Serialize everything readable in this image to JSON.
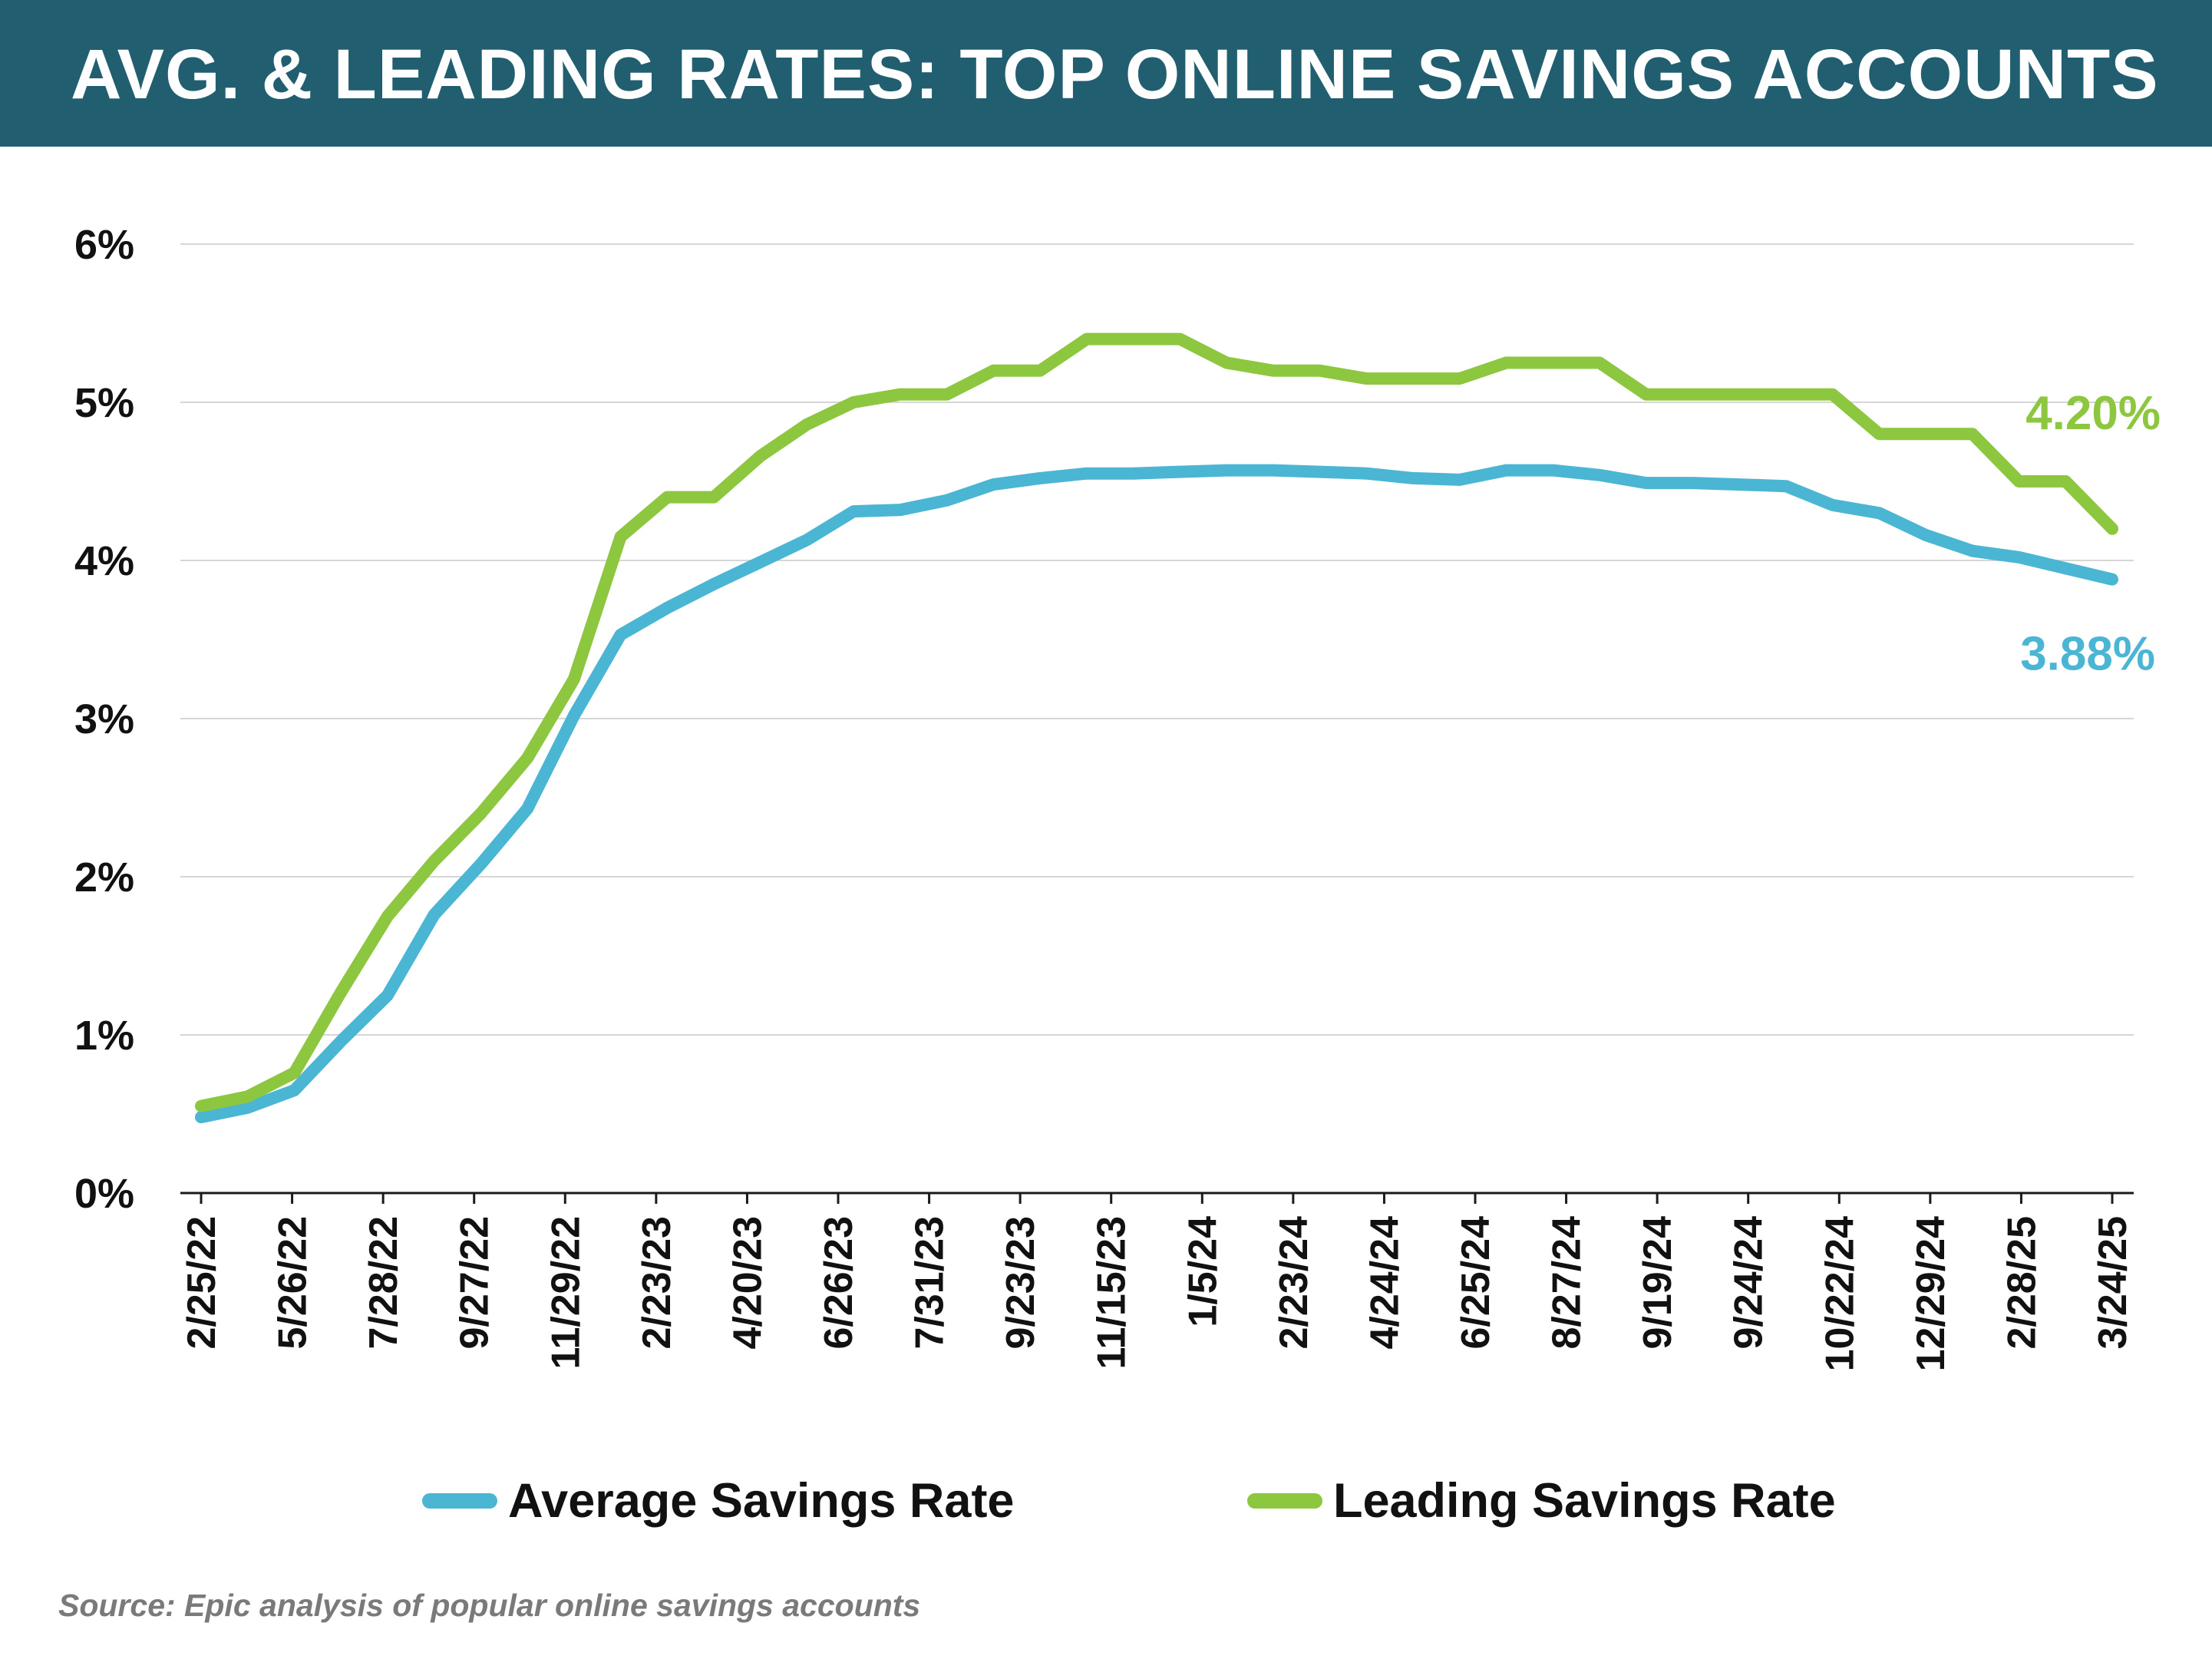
{
  "header": {
    "title": "AVG. & LEADING RATES: TOP ONLINE SAVINGS ACCOUNTS"
  },
  "colors": {
    "header_bg": "#215e70",
    "average": "#4bb5d4",
    "leading": "#8dc63f",
    "grid": "#d6d6d6"
  },
  "chart_data": {
    "type": "line",
    "title": "AVG. & LEADING RATES: TOP ONLINE SAVINGS ACCOUNTS",
    "xlabel": "",
    "ylabel": "",
    "ylim": [
      0,
      6
    ],
    "yticks": [
      "0%",
      "1%",
      "2%",
      "3%",
      "4%",
      "5%",
      "6%"
    ],
    "grid": true,
    "legend": "bottom",
    "x_tick_labels": [
      "2/25/22",
      "5/26/22",
      "7/28/22",
      "9/27/22",
      "11/29/22",
      "2/23/23",
      "4/20/23",
      "6/26/23",
      "7/31/23",
      "9/23/23",
      "11/15/23",
      "1/5/24",
      "2/23/24",
      "4/24/24",
      "6/25/24",
      "8/27/24",
      "9/19/24",
      "9/24/24",
      "10/22/24",
      "12/29/24",
      "2/28/25",
      "3/24/25"
    ],
    "series": [
      {
        "name": "Average Savings Rate",
        "color": "#4bb5d4",
        "end_label": "3.88%",
        "values": [
          0.48,
          0.54,
          0.65,
          0.96,
          1.25,
          1.76,
          2.08,
          2.43,
          3.02,
          3.53,
          3.7,
          3.85,
          3.99,
          4.13,
          4.31,
          4.32,
          4.38,
          4.48,
          4.52,
          4.55,
          4.55,
          4.56,
          4.57,
          4.57,
          4.56,
          4.55,
          4.52,
          4.51,
          4.57,
          4.57,
          4.54,
          4.49,
          4.49,
          4.48,
          4.47,
          4.35,
          4.3,
          4.16,
          4.06,
          4.02,
          3.95,
          3.88
        ]
      },
      {
        "name": "Leading Savings Rate",
        "color": "#8dc63f",
        "end_label": "4.20%",
        "values": [
          0.55,
          0.61,
          0.76,
          1.27,
          1.75,
          2.1,
          2.4,
          2.75,
          3.25,
          4.15,
          4.4,
          4.4,
          4.66,
          4.86,
          5.0,
          5.05,
          5.05,
          5.2,
          5.2,
          5.4,
          5.4,
          5.4,
          5.25,
          5.2,
          5.2,
          5.15,
          5.15,
          5.15,
          5.25,
          5.25,
          5.25,
          5.05,
          5.05,
          5.05,
          5.05,
          5.05,
          4.8,
          4.8,
          4.8,
          4.5,
          4.5,
          4.2
        ]
      }
    ]
  },
  "legend": {
    "average_label": "Average Savings Rate",
    "leading_label": "Leading Savings Rate"
  },
  "source": "Source: Epic analysis of popular online savings accounts"
}
